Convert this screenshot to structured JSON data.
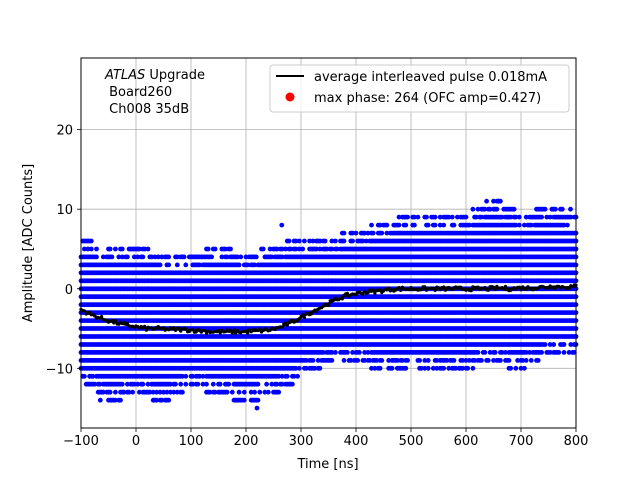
{
  "chart_data": {
    "type": "scatter",
    "title": "",
    "xlabel": "Time [ns]",
    "ylabel": "Amplitude [ADC Counts]",
    "xlim": [
      -100,
      800
    ],
    "ylim": [
      -17.5,
      29
    ],
    "xticks": [
      -100,
      0,
      100,
      200,
      300,
      400,
      500,
      600,
      700,
      800
    ],
    "yticks": [
      -10,
      0,
      10,
      20
    ],
    "grid": true,
    "legend_position": "top-right",
    "annotation": {
      "line1_italic": "ATLAS",
      "line1_rest": " Upgrade",
      "line2": " Board260",
      "line3": " Ch008 35dB"
    },
    "series": [
      {
        "name": "average interleaved pulse 0.018mA",
        "kind": "line",
        "color": "#000000",
        "x": [
          -100,
          -80,
          -60,
          -40,
          -20,
          0,
          20,
          40,
          60,
          80,
          100,
          120,
          140,
          160,
          180,
          200,
          220,
          240,
          260,
          280,
          300,
          320,
          340,
          360,
          380,
          400,
          420,
          440,
          460,
          480,
          500,
          520,
          540,
          560,
          580,
          600,
          620,
          640,
          660,
          680,
          700,
          720,
          740,
          760,
          780,
          800
        ],
        "y": [
          -2.6,
          -3.3,
          -3.8,
          -4.2,
          -4.5,
          -4.8,
          -5.0,
          -5.0,
          -5.1,
          -5.1,
          -5.2,
          -5.3,
          -5.4,
          -5.4,
          -5.4,
          -5.4,
          -5.3,
          -5.2,
          -4.9,
          -4.3,
          -3.6,
          -2.9,
          -2.2,
          -1.5,
          -0.9,
          -0.6,
          -0.4,
          -0.3,
          -0.1,
          0.0,
          0.0,
          0.0,
          0.0,
          0.0,
          0.0,
          0.0,
          0.0,
          0.0,
          0.1,
          0.0,
          0.1,
          0.1,
          0.2,
          0.3,
          0.2,
          0.3
        ]
      },
      {
        "name": "max phase: 264 (OFC amp=0.427)",
        "kind": "marker",
        "color": "#ff0000",
        "x": [],
        "y": []
      }
    ],
    "scatter_envelope": {
      "color": "#0000ff",
      "x": [
        -100,
        -50,
        0,
        50,
        100,
        150,
        200,
        250,
        300,
        350,
        400,
        450,
        500,
        550,
        600,
        650,
        700,
        750,
        800
      ],
      "y_min": [
        -11,
        -14,
        -13,
        -14,
        -12,
        -13,
        -14,
        -13,
        -11,
        -9,
        -9,
        -10,
        -10,
        -10,
        -10,
        -9,
        -10,
        -8,
        -8
      ],
      "y_max": [
        6,
        5,
        5,
        4,
        4,
        5,
        4,
        5,
        6,
        6,
        7,
        8,
        9,
        9,
        9,
        11,
        9,
        10,
        9
      ],
      "outliers": [
        {
          "x": 220,
          "y": -15
        },
        {
          "x": -65,
          "y": -14
        },
        {
          "x": 265,
          "y": 8
        },
        {
          "x": 660,
          "y": 11
        },
        {
          "x": 790,
          "y": 10
        }
      ]
    }
  }
}
